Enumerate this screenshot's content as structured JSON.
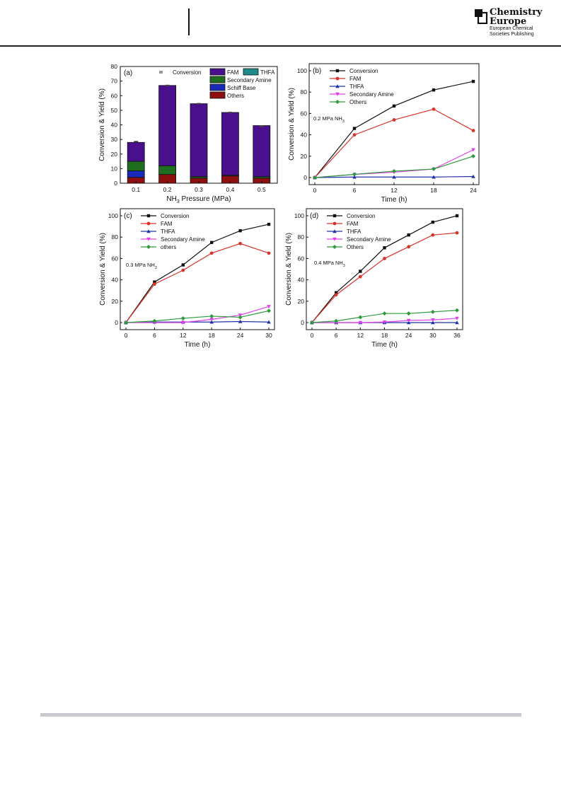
{
  "header": {
    "logo_line1": "Chemistry",
    "logo_line2": "Europe",
    "logo_line3": "European Chemical",
    "logo_line4": "Societies Publishing"
  },
  "colors": {
    "conversion": "#111111",
    "fam": "#d9342b",
    "thfa": "#2233aa",
    "secondary_amine": "#e040e8",
    "others": "#2e9a3c",
    "bar_fam": "#4a0f8c",
    "bar_thfa": "#1f8a8a",
    "bar_secondary": "#1f6e1f",
    "bar_schiff": "#1a2ab8",
    "bar_others": "#8e0f0f"
  },
  "chart_data": [
    {
      "panel": "(a)",
      "type": "bar",
      "stacked": true,
      "categories": [
        "0.1",
        "0.2",
        "0.3",
        "0.4",
        "0.5"
      ],
      "xlabel_main": "NH",
      "xlabel_sub": "3",
      "xlabel_tail": " Pressure (MPa)",
      "ylabel": "Conversion & Yield (%)",
      "ylim": [
        0,
        80
      ],
      "yticks": [
        "0",
        "10",
        "20",
        "30",
        "40",
        "50",
        "60",
        "70",
        "80"
      ],
      "series": [
        {
          "name": "Others",
          "values": [
            4,
            6,
            3.5,
            5,
            3.5
          ]
        },
        {
          "name": "Schiff Base",
          "values": [
            4.5,
            0,
            0,
            0,
            0
          ]
        },
        {
          "name": "Secondary Amine",
          "values": [
            6.5,
            6,
            1,
            0.5,
            1
          ]
        },
        {
          "name": "THFA",
          "values": [
            0,
            0,
            0,
            0,
            0
          ]
        },
        {
          "name": "FAM",
          "values": [
            13,
            55,
            50,
            43,
            35
          ]
        }
      ],
      "conversion": [
        28.5,
        67,
        54.5,
        48.5,
        39
      ],
      "legend": [
        "Conversion",
        "FAM",
        "THFA",
        "Secondary Amine",
        "Schiff Base",
        "Others"
      ]
    },
    {
      "panel": "(b)",
      "type": "line",
      "annotation_main": "0.2 MPa NH",
      "annotation_sub": "3",
      "xlabel": "Time (h)",
      "ylabel": "Conversion & Yield (%)",
      "xlim": [
        0,
        24
      ],
      "ylim": [
        0,
        100
      ],
      "xticks": [
        "0",
        "6",
        "12",
        "18",
        "24"
      ],
      "yticks": [
        "0",
        "20",
        "40",
        "60",
        "80",
        "100"
      ],
      "x": [
        0,
        6,
        12,
        18,
        24
      ],
      "series": [
        {
          "name": "Conversion",
          "values": [
            0,
            46,
            67,
            82,
            90
          ]
        },
        {
          "name": "FAM",
          "values": [
            0,
            40,
            54,
            64,
            44
          ]
        },
        {
          "name": "THFA",
          "values": [
            0,
            0.5,
            0.5,
            0.5,
            1
          ]
        },
        {
          "name": "Secondary Amine",
          "values": [
            0,
            3,
            5,
            8,
            26
          ]
        },
        {
          "name": "Others",
          "values": [
            0,
            3,
            6,
            8,
            20
          ]
        }
      ]
    },
    {
      "panel": "(c)",
      "type": "line",
      "annotation_main": "0.3 MPa NH",
      "annotation_sub": "3",
      "xlabel": "Time (h)",
      "ylabel": "Conversion & Yield (%)",
      "xlim": [
        0,
        30
      ],
      "ylim": [
        0,
        100
      ],
      "xticks": [
        "0",
        "6",
        "12",
        "18",
        "24",
        "30"
      ],
      "yticks": [
        "0",
        "20",
        "40",
        "60",
        "80",
        "100"
      ],
      "x": [
        0,
        6,
        12,
        18,
        24,
        30
      ],
      "series": [
        {
          "name": "Conversion",
          "values": [
            0,
            38,
            54,
            75,
            86,
            92
          ]
        },
        {
          "name": "FAM",
          "values": [
            0,
            36,
            49,
            65,
            74,
            65
          ]
        },
        {
          "name": "THFA",
          "values": [
            0,
            0.5,
            0.5,
            0.5,
            1,
            0.5
          ]
        },
        {
          "name": "Secondary Amine",
          "values": [
            0,
            0,
            0,
            3,
            7,
            15
          ]
        },
        {
          "name": "others",
          "values": [
            0,
            1.5,
            4,
            6,
            5,
            11
          ]
        }
      ]
    },
    {
      "panel": "(d)",
      "type": "line",
      "annotation_main": "0.4 MPa NH",
      "annotation_sub": "3",
      "xlabel": "Time (h)",
      "ylabel": "Conversion & Yield (%)",
      "xlim": [
        0,
        36
      ],
      "ylim": [
        0,
        100
      ],
      "xticks": [
        "0",
        "6",
        "12",
        "18",
        "24",
        "30",
        "36"
      ],
      "yticks": [
        "0",
        "20",
        "40",
        "60",
        "80",
        "100"
      ],
      "x": [
        0,
        6,
        12,
        18,
        24,
        30,
        36
      ],
      "series": [
        {
          "name": "Conversion",
          "values": [
            0,
            28,
            48,
            70,
            82,
            94,
            100
          ]
        },
        {
          "name": "FAM",
          "values": [
            0,
            26,
            43,
            60,
            71,
            82,
            84
          ]
        },
        {
          "name": "THFA",
          "values": [
            0,
            0,
            0,
            0,
            0,
            0,
            0
          ]
        },
        {
          "name": "Secondary Amine",
          "values": [
            0,
            0,
            0,
            0.5,
            2,
            2.5,
            4
          ]
        },
        {
          "name": "Others",
          "values": [
            0,
            1.5,
            5,
            8.5,
            8.5,
            10,
            11.5
          ]
        }
      ]
    }
  ]
}
